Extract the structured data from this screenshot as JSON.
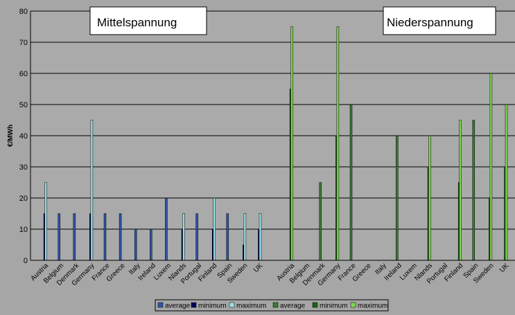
{
  "chart_data": {
    "type": "bar",
    "ylabel": "€/MWh",
    "ylim": [
      0,
      80
    ],
    "yticks": [
      0,
      10,
      20,
      30,
      40,
      50,
      60,
      70,
      80
    ],
    "grid": true,
    "legend_position": "bottom",
    "categories": [
      "Austria",
      "Belgium",
      "Denmark",
      "Germany",
      "France",
      "Greece",
      "Italy",
      "Ireland",
      "Luxem",
      "Nlands",
      "Portugal",
      "Finland",
      "Spain",
      "Sweden",
      "UK"
    ],
    "groups": [
      {
        "label": "Mittelspannung",
        "series": [
          {
            "name": "average",
            "color": "#3355a5",
            "values": [
              null,
              15,
              15,
              null,
              15,
              15,
              10,
              10,
              20,
              null,
              15,
              null,
              15,
              null,
              null
            ]
          },
          {
            "name": "minimum",
            "color": "#00005a",
            "values": [
              15,
              null,
              null,
              15,
              null,
              null,
              null,
              null,
              null,
              10,
              null,
              10,
              null,
              5,
              10
            ]
          },
          {
            "name": "maximum",
            "color": "#9ae0e2",
            "values": [
              25,
              null,
              null,
              45,
              null,
              null,
              null,
              null,
              null,
              15,
              null,
              20,
              null,
              15,
              15
            ]
          }
        ]
      },
      {
        "label": "Niederspannung",
        "series": [
          {
            "name": "average",
            "color": "#3b7a35",
            "values": [
              null,
              null,
              25,
              null,
              50,
              null,
              null,
              40,
              null,
              null,
              null,
              null,
              45,
              null,
              null
            ]
          },
          {
            "name": "minimum",
            "color": "#1f6218",
            "values": [
              55,
              null,
              null,
              40,
              null,
              null,
              null,
              null,
              null,
              30,
              null,
              25,
              null,
              20,
              30
            ]
          },
          {
            "name": "maximum",
            "color": "#7fd94e",
            "values": [
              75,
              null,
              null,
              75,
              null,
              null,
              null,
              null,
              null,
              40,
              null,
              45,
              null,
              60,
              50
            ]
          }
        ]
      }
    ]
  }
}
